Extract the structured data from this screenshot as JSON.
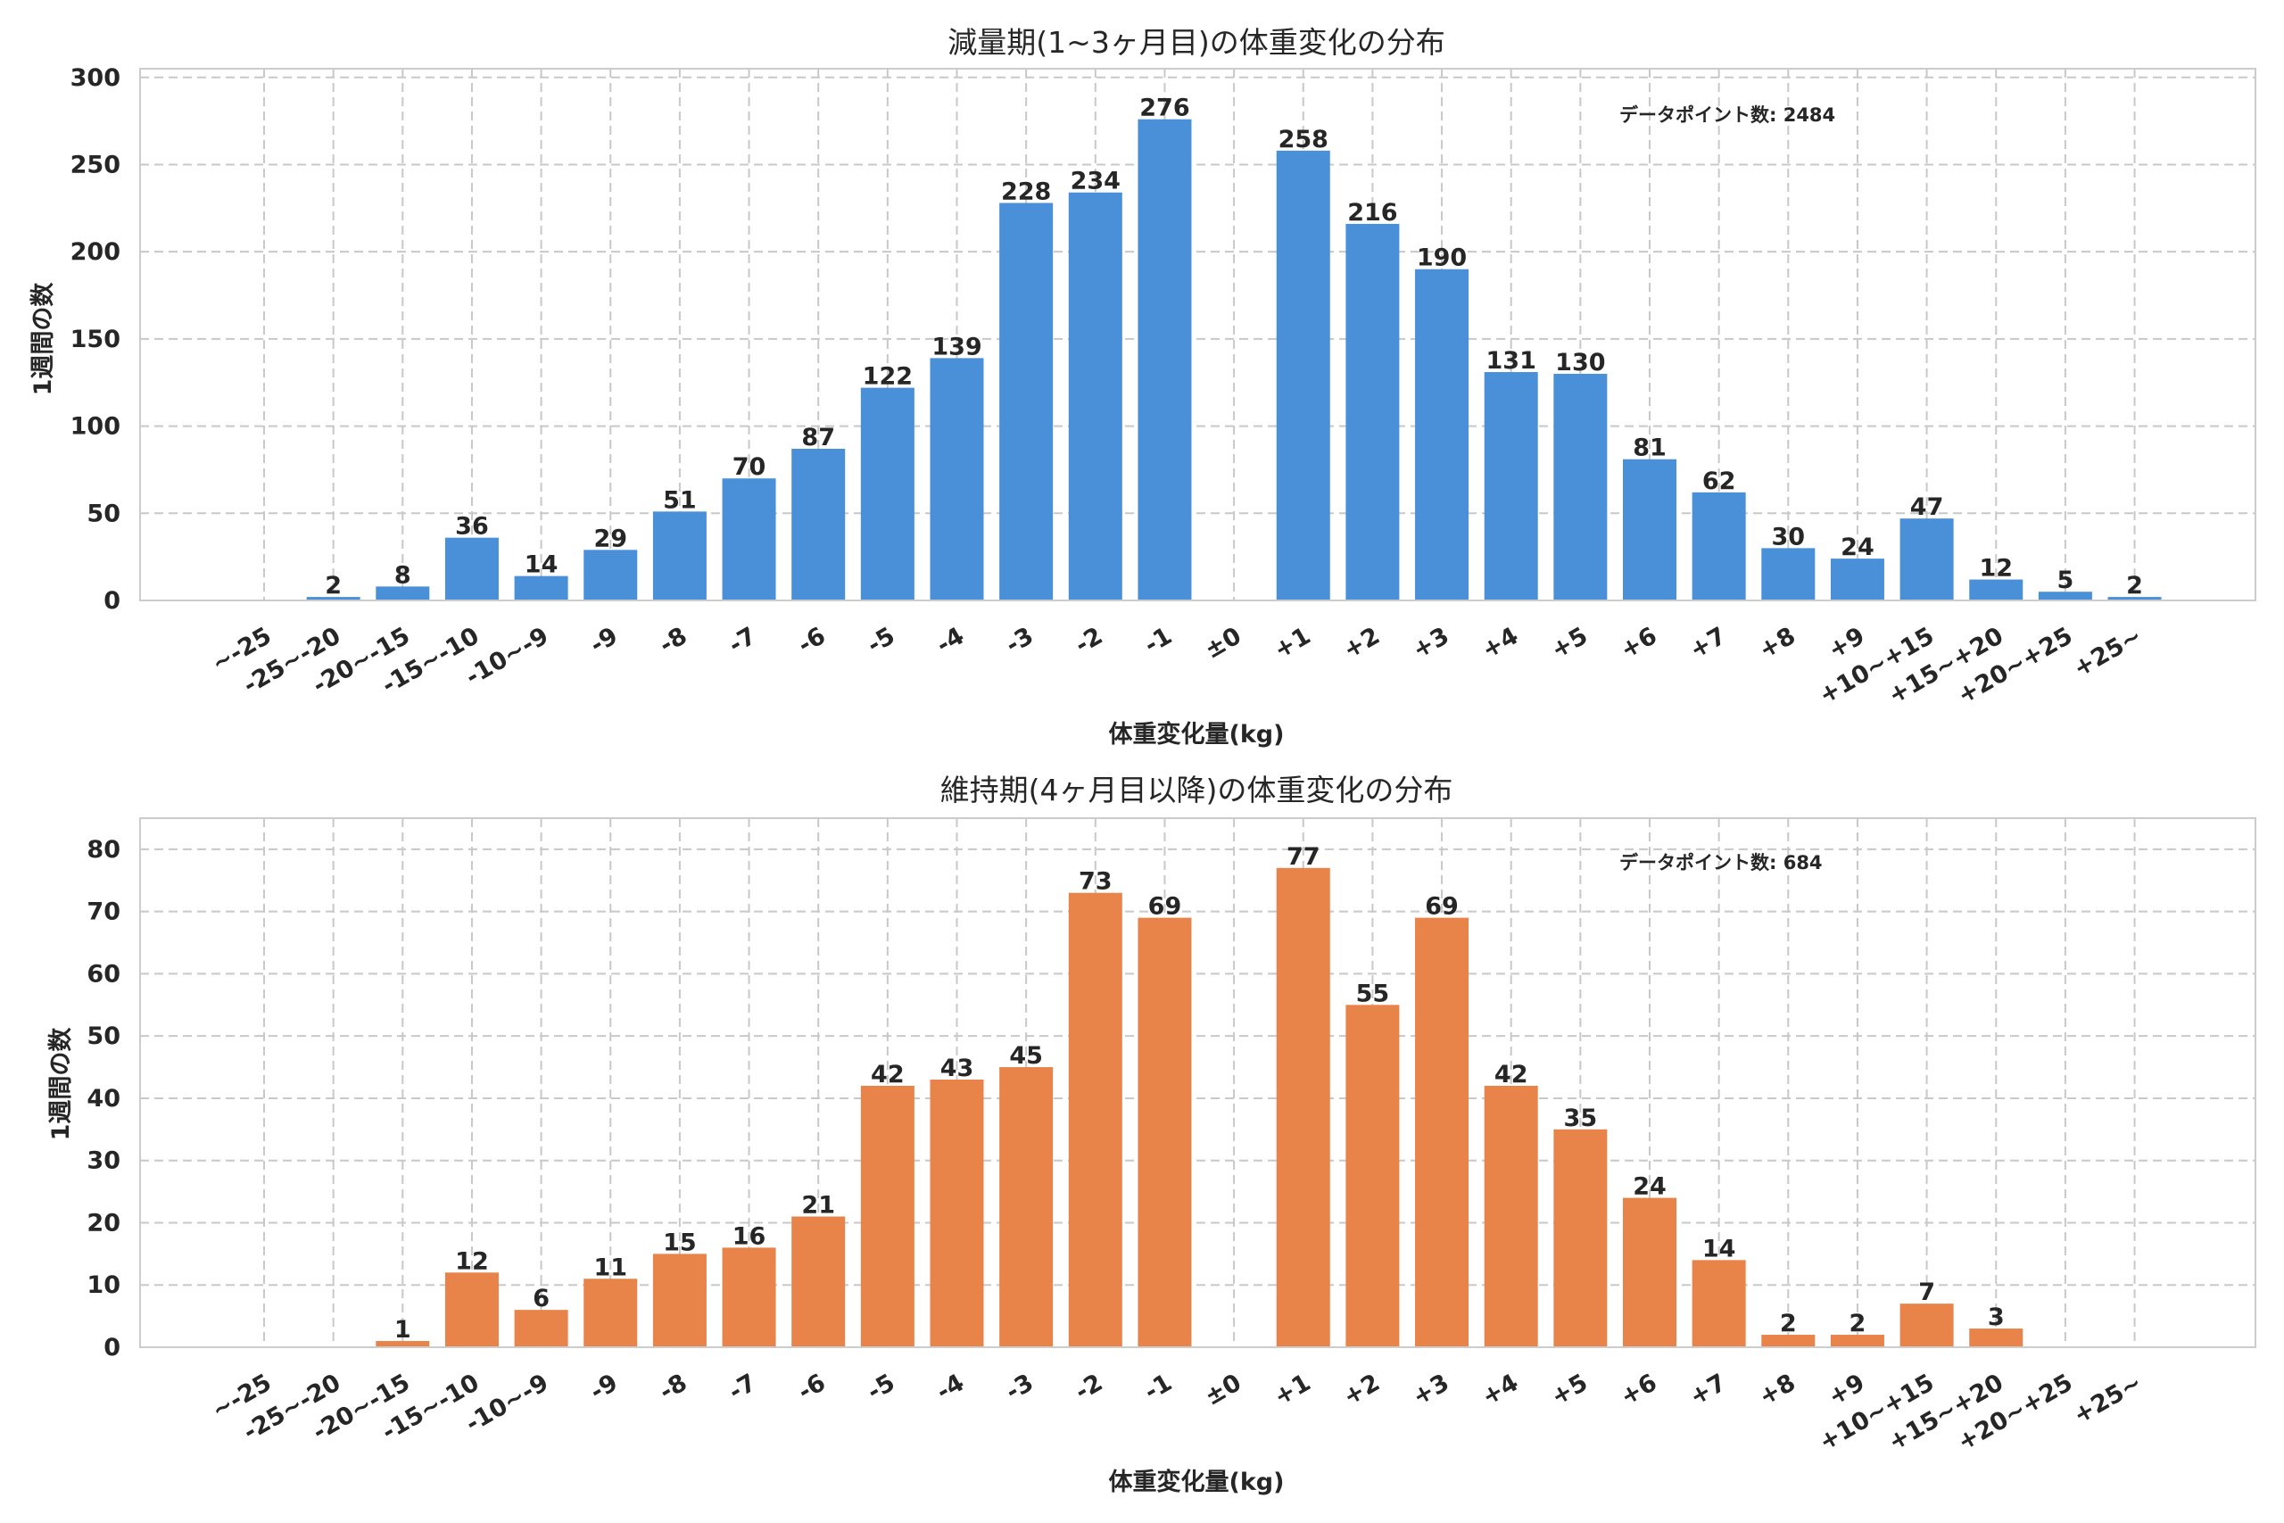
{
  "chart_data": [
    {
      "type": "bar",
      "title": "減量期(1~3ヶ月目)の体重変化の分布",
      "xlabel": "体重変化量(kg)",
      "ylabel": "1週間の数",
      "annotation": "データポイント数: 2484",
      "color": "#4a90d9",
      "ylim": [
        0,
        305
      ],
      "yticks": [
        0,
        50,
        100,
        150,
        200,
        250,
        300
      ],
      "categories": [
        "~-25",
        "-25~-20",
        "-20~-15",
        "-15~-10",
        "-10~-9",
        "-9",
        "-8",
        "-7",
        "-6",
        "-5",
        "-4",
        "-3",
        "-2",
        "-1",
        "±0",
        "+1",
        "+2",
        "+3",
        "+4",
        "+5",
        "+6",
        "+7",
        "+8",
        "+9",
        "+10~+15",
        "+15~+20",
        "+20~+25",
        "+25~"
      ],
      "values": [
        null,
        2,
        8,
        36,
        14,
        29,
        51,
        70,
        87,
        122,
        139,
        228,
        234,
        276,
        null,
        258,
        216,
        190,
        131,
        130,
        81,
        62,
        30,
        24,
        47,
        12,
        5,
        2
      ]
    },
    {
      "type": "bar",
      "title": "維持期(4ヶ月目以降)の体重変化の分布",
      "xlabel": "体重変化量(kg)",
      "ylabel": "1週間の数",
      "annotation": "データポイント数: 684",
      "color": "#e8834a",
      "ylim": [
        0,
        85
      ],
      "yticks": [
        0,
        10,
        20,
        30,
        40,
        50,
        60,
        70,
        80
      ],
      "categories": [
        "~-25",
        "-25~-20",
        "-20~-15",
        "-15~-10",
        "-10~-9",
        "-9",
        "-8",
        "-7",
        "-6",
        "-5",
        "-4",
        "-3",
        "-2",
        "-1",
        "±0",
        "+1",
        "+2",
        "+3",
        "+4",
        "+5",
        "+6",
        "+7",
        "+8",
        "+9",
        "+10~+15",
        "+15~+20",
        "+20~+25",
        "+25~"
      ],
      "values": [
        null,
        null,
        1,
        12,
        6,
        11,
        15,
        16,
        21,
        42,
        43,
        45,
        73,
        69,
        null,
        77,
        55,
        69,
        42,
        35,
        24,
        14,
        2,
        2,
        7,
        3,
        null,
        null
      ]
    }
  ]
}
